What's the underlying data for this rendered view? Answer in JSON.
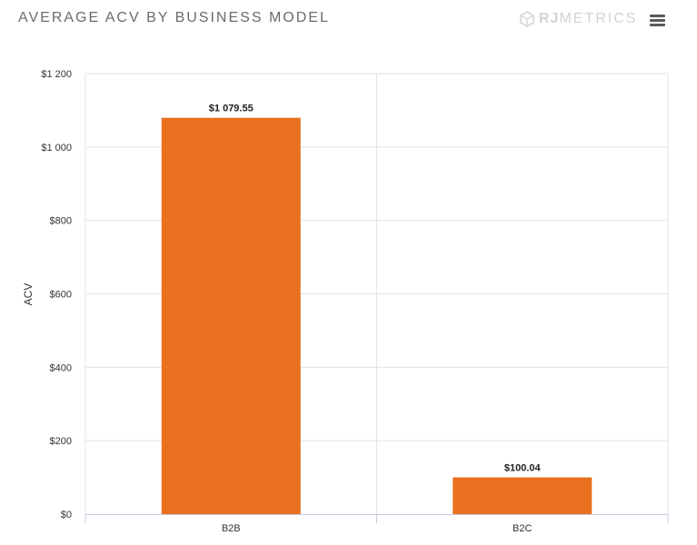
{
  "header": {
    "title": "AVERAGE ACV BY BUSINESS MODEL",
    "brand_bold": "RJ",
    "brand_light": "METRICS"
  },
  "icons": {
    "logo": "rjmetrics-logo-icon",
    "menu": "hamburger-menu-icon"
  },
  "colors": {
    "bar": "#e8701f",
    "grid": "#e3e3e3",
    "axis": "#c8c8e0"
  },
  "chart_data": {
    "type": "bar",
    "title": "AVERAGE ACV BY BUSINESS MODEL",
    "xlabel": "",
    "ylabel": "ACV",
    "categories": [
      "B2B",
      "B2C"
    ],
    "values": [
      1079.55,
      100.04
    ],
    "data_labels": [
      "$1 079.55",
      "$100.04"
    ],
    "ylim": [
      0,
      1200
    ],
    "y_ticks": [
      0,
      200,
      400,
      600,
      800,
      1000,
      1200
    ],
    "y_tick_labels": [
      "$0",
      "$200",
      "$400",
      "$600",
      "$800",
      "$1 000",
      "$1 200"
    ],
    "grid": true,
    "legend": "none"
  }
}
